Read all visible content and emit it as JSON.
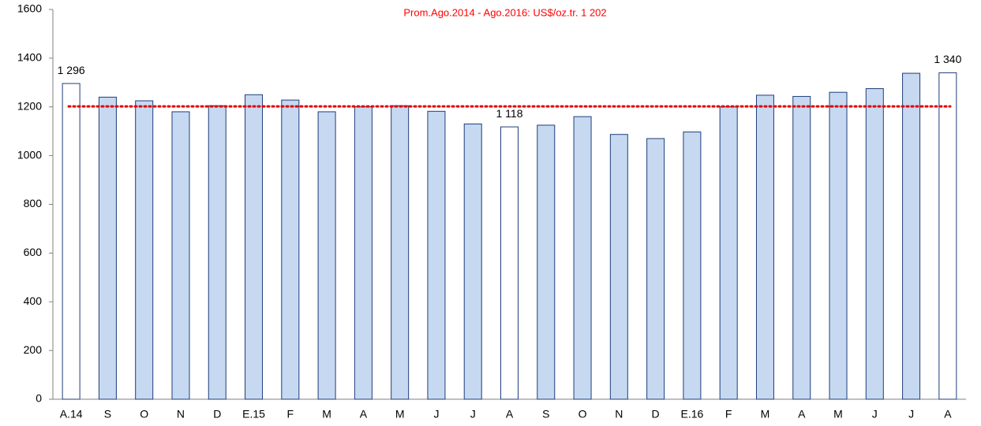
{
  "chart_data": {
    "type": "bar",
    "annotation": "Prom.Ago.2014 - Ago.2016: US$/oz.tr. 1 202",
    "average": 1202,
    "average_color": "#e00000",
    "categories": [
      "A.14",
      "S",
      "O",
      "N",
      "D",
      "E.15",
      "F",
      "M",
      "A",
      "M",
      "J",
      "J",
      "A",
      "S",
      "O",
      "N",
      "D",
      "E.16",
      "F",
      "M",
      "A",
      "M",
      "J",
      "J",
      "A"
    ],
    "values": [
      1296,
      1240,
      1225,
      1180,
      1205,
      1250,
      1228,
      1180,
      1200,
      1205,
      1182,
      1130,
      1118,
      1125,
      1160,
      1087,
      1070,
      1097,
      1200,
      1248,
      1243,
      1260,
      1275,
      1338,
      1340
    ],
    "value_labels": [
      "1 296",
      null,
      null,
      null,
      null,
      null,
      null,
      null,
      null,
      null,
      null,
      null,
      "1 118",
      null,
      null,
      null,
      null,
      null,
      null,
      null,
      null,
      null,
      null,
      null,
      "1 340"
    ],
    "colors": [
      "#ffffff",
      "#c6d9f1",
      "#c6d9f1",
      "#c6d9f1",
      "#c6d9f1",
      "#c6d9f1",
      "#c6d9f1",
      "#c6d9f1",
      "#c6d9f1",
      "#c6d9f1",
      "#c6d9f1",
      "#c6d9f1",
      "#ffffff",
      "#c6d9f1",
      "#c6d9f1",
      "#c6d9f1",
      "#c6d9f1",
      "#c6d9f1",
      "#c6d9f1",
      "#c6d9f1",
      "#c6d9f1",
      "#c6d9f1",
      "#c6d9f1",
      "#c6d9f1",
      "#ffffff"
    ],
    "edge_color": "#1f3d7a",
    "ylim": [
      0,
      1600
    ],
    "yticks": [
      0,
      200,
      400,
      600,
      800,
      1000,
      1200,
      1400,
      1600
    ],
    "grid": false
  }
}
